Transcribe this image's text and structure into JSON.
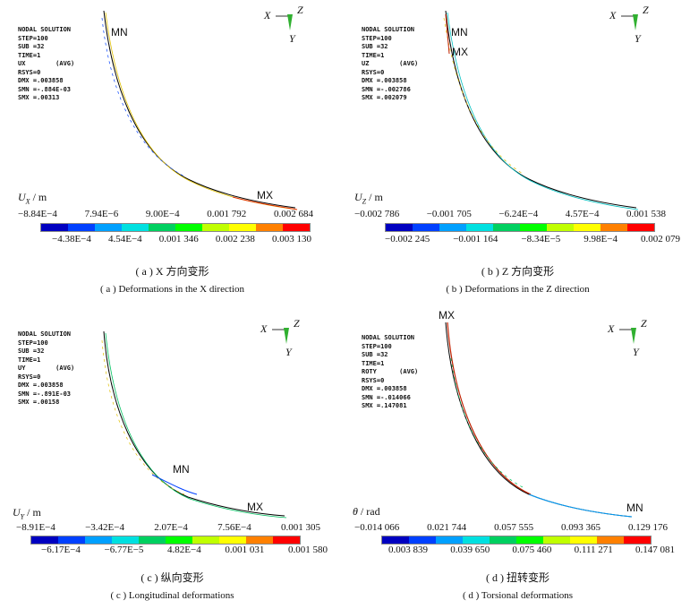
{
  "legend_colors": [
    "#0000c0",
    "#0040ff",
    "#00a0ff",
    "#00e0e0",
    "#00d060",
    "#00ff00",
    "#c0ff00",
    "#ffff00",
    "#ff8000",
    "#ff0000"
  ],
  "panels": [
    {
      "info": [
        "NODAL SOLUTION",
        "STEP=100",
        "SUB =32",
        "TIME=1",
        "UX        (AVG)",
        "RSYS=0",
        "DMX =.003858",
        "SMN =-.884E-03",
        "SMX =.00313"
      ],
      "mn": "MN",
      "mx": "MX",
      "unit": "U_X / m",
      "unit_sym": "U",
      "unit_sub": "X",
      "unit_rest": " / m",
      "top_ticks": [
        "−8.84E−4",
        "7.94E−6",
        "9.00E−4",
        "0.001 792",
        "0.002 684"
      ],
      "bottom_ticks": [
        "−4.38E−4",
        "4.54E−4",
        "0.001 346",
        "0.002 238",
        "0.003 130"
      ],
      "caption_cn": "( a )  X 方向变形",
      "caption_en": "( a )  Deformations in the X direction"
    },
    {
      "info": [
        "NODAL SOLUTION",
        "STEP=100",
        "SUB =32",
        "TIME=1",
        "UZ        (AVG)",
        "RSYS=0",
        "DMX =.003858",
        "SMN =-.002786",
        "SMX =.002079"
      ],
      "mn": "MN",
      "mx": "MX",
      "unit_sym": "U",
      "unit_sub": "Z",
      "unit_rest": " / m",
      "top_ticks": [
        "−0.002 786",
        "−0.001 705",
        "−6.24E−4",
        "4.57E−4",
        "0.001 538"
      ],
      "bottom_ticks": [
        "−0.002 245",
        "−0.001 164",
        "−8.34E−5",
        "9.98E−4",
        "0.002 079"
      ],
      "caption_cn": "( b )  Z 方向变形",
      "caption_en": "( b )  Deformations in the Z direction"
    },
    {
      "info": [
        "NODAL SOLUTION",
        "STEP=100",
        "SUB =32",
        "TIME=1",
        "UY        (AVG)",
        "RSYS=0",
        "DMX =.003858",
        "SMN =-.891E-03",
        "SMX =.00158"
      ],
      "mn": "MN",
      "mx": "MX",
      "unit_sym": "U",
      "unit_sub": "Y",
      "unit_rest": " / m",
      "top_ticks": [
        "−8.91E−4",
        "−3.42E−4",
        "2.07E−4",
        "7.56E−4",
        "0.001 305"
      ],
      "bottom_ticks": [
        "−6.17E−4",
        "−6.77E−5",
        "4.82E−4",
        "0.001 031",
        "0.001 580"
      ],
      "caption_cn": "( c )  纵向变形",
      "caption_en": "( c )  Longitudinal deformations"
    },
    {
      "info": [
        "NODAL SOLUTION",
        "STEP=100",
        "SUB =32",
        "TIME=1",
        "ROTY      (AVG)",
        "RSYS=0",
        "DMX =.003858",
        "SMN =-.014066",
        "SMX =.147081"
      ],
      "mn": "MN",
      "mx": "MX",
      "unit_sym": "θ",
      "unit_sub": "",
      "unit_rest": " / rad",
      "top_ticks": [
        "−0.014 066",
        "0.021 744",
        "0.057 555",
        "0.093 365",
        "0.129 176"
      ],
      "bottom_ticks": [
        "0.003 839",
        "0.039 650",
        "0.075 460",
        "0.111 271",
        "0.147 081"
      ],
      "caption_cn": "( d )  扭转变形",
      "caption_en": "( d )  Torsional deformations"
    }
  ],
  "axis_triad": {
    "x": "X",
    "y": "Y",
    "z": "Z"
  }
}
